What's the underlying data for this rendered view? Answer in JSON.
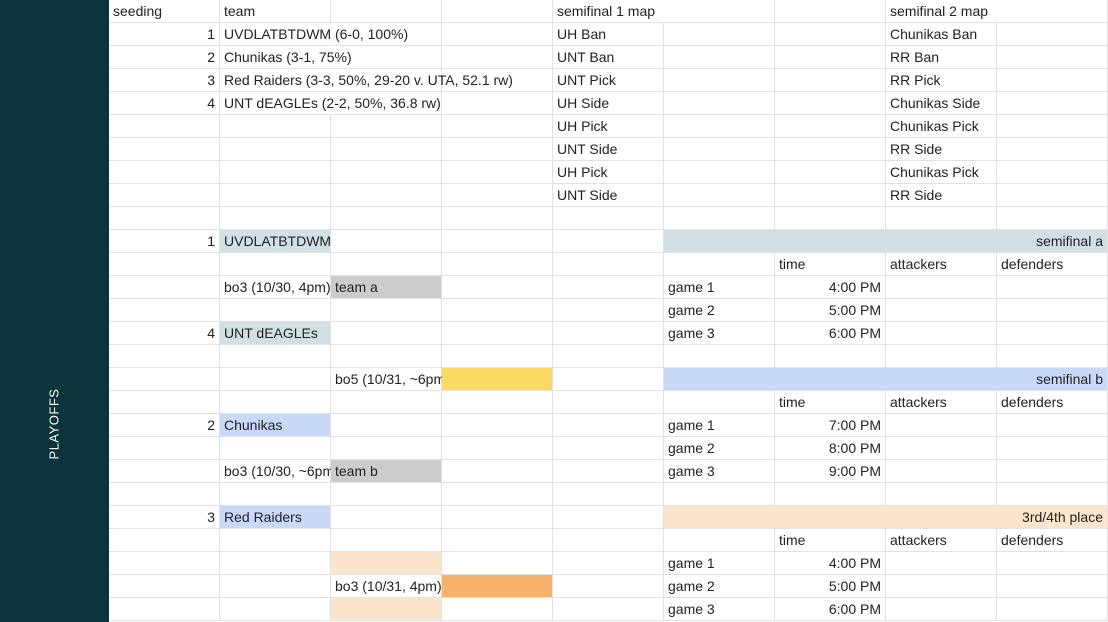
{
  "sidebar": {
    "label": "PLAYOFFS"
  },
  "headers": {
    "seeding": "seeding",
    "team": "team",
    "semifinal1_map": "semifinal 1 map",
    "semifinal2_map": "semifinal 2 map"
  },
  "seeds": [
    {
      "seed": "1",
      "team": "UVDLATBTDWM (6-0, 100%)"
    },
    {
      "seed": "2",
      "team": "Chunikas (3-1, 75%)"
    },
    {
      "seed": "3",
      "team": "Red Raiders (3-3, 50%, 29-20 v. UTA, 52.1 rw)"
    },
    {
      "seed": "4",
      "team": "UNT dEAGLEs (2-2, 50%, 36.8 rw)"
    }
  ],
  "semifinal1_map": [
    "UH Ban",
    "UNT Ban",
    "UNT Pick",
    "UH Side",
    "UH Pick",
    "UNT Side",
    "UH Pick",
    "UNT Side"
  ],
  "semifinal2_map": [
    "Chunikas Ban",
    "RR Ban",
    "RR Pick",
    "Chunikas Side",
    "Chunikas Pick",
    "RR Side",
    "Chunikas Pick",
    "RR Side"
  ],
  "bracket": {
    "seed1": "1",
    "team1": "UVDLATBTDWM",
    "match_a": "bo3 (10/30, 4pm)",
    "team_a": "team a",
    "seed4": "4",
    "team4": "UNT dEAGLEs",
    "final": "bo5 (10/31, ~6pm)",
    "seed2": "2",
    "team2": "Chunikas",
    "match_b": "bo3 (10/30, ~6pm)",
    "team_b": "team b",
    "seed3": "3",
    "team3": "Red Raiders",
    "third": "bo3 (10/31, 4pm)"
  },
  "schedules": [
    {
      "title": "semifinal a",
      "color": "#d0e0e3",
      "cols": [
        "time",
        "attackers",
        "defenders"
      ],
      "games": [
        {
          "label": "game 1",
          "time": "4:00 PM"
        },
        {
          "label": "game 2",
          "time": "5:00 PM"
        },
        {
          "label": "game 3",
          "time": "6:00 PM"
        }
      ]
    },
    {
      "title": "semifinal b",
      "color": "#c9daf8",
      "cols": [
        "time",
        "attackers",
        "defenders"
      ],
      "games": [
        {
          "label": "game 1",
          "time": "7:00 PM"
        },
        {
          "label": "game 2",
          "time": "8:00 PM"
        },
        {
          "label": "game 3",
          "time": "9:00 PM"
        }
      ]
    },
    {
      "title": "3rd/4th place",
      "color": "#fce5cd",
      "cols": [
        "time",
        "attackers",
        "defenders"
      ],
      "games": [
        {
          "label": "game 1",
          "time": "4:00 PM"
        },
        {
          "label": "game 2",
          "time": "5:00 PM"
        },
        {
          "label": "game 3",
          "time": "6:00 PM"
        }
      ]
    }
  ],
  "colors": {
    "sidebar": "#0c343d",
    "seed_teal": "#d0e0e3",
    "seed_blue": "#c9daf8",
    "placeholder_gray": "#cccccc",
    "final_yellow": "#ffd966",
    "third_light_orange": "#fce5cd",
    "third_orange": "#f6b26b"
  }
}
